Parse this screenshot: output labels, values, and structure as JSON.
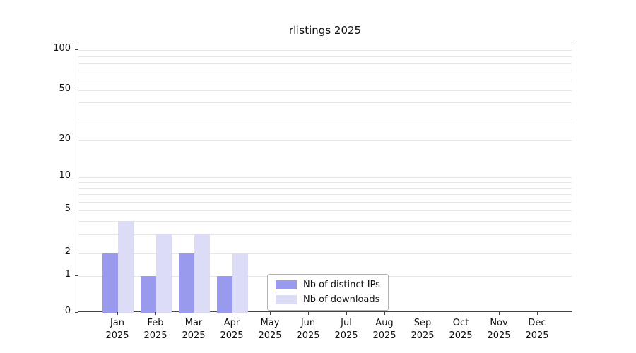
{
  "chart_data": {
    "type": "bar",
    "title": "rlistings 2025",
    "categories": [
      "Jan 2025",
      "Feb 2025",
      "Mar 2025",
      "Apr 2025",
      "May 2025",
      "Jun 2025",
      "Jul 2025",
      "Aug 2025",
      "Sep 2025",
      "Oct 2025",
      "Nov 2025",
      "Dec 2025"
    ],
    "series": [
      {
        "name": "Nb of distinct IPs",
        "color": "#9999ee",
        "values": [
          2,
          1,
          2,
          1,
          0,
          0,
          0,
          0,
          0,
          0,
          0,
          0
        ]
      },
      {
        "name": "Nb of downloads",
        "color": "#dcdcf7",
        "values": [
          4,
          3,
          3,
          2,
          0,
          0,
          0,
          0,
          0,
          0,
          0,
          0
        ]
      }
    ],
    "xlabel": "",
    "ylabel": "",
    "yscale": "symlog",
    "ytick_values": [
      0,
      1,
      2,
      5,
      10,
      20,
      50,
      100
    ],
    "ylim": [
      0,
      130
    ],
    "grid": "horizontal-minor-log",
    "legend_position": "lower-center-inside"
  }
}
